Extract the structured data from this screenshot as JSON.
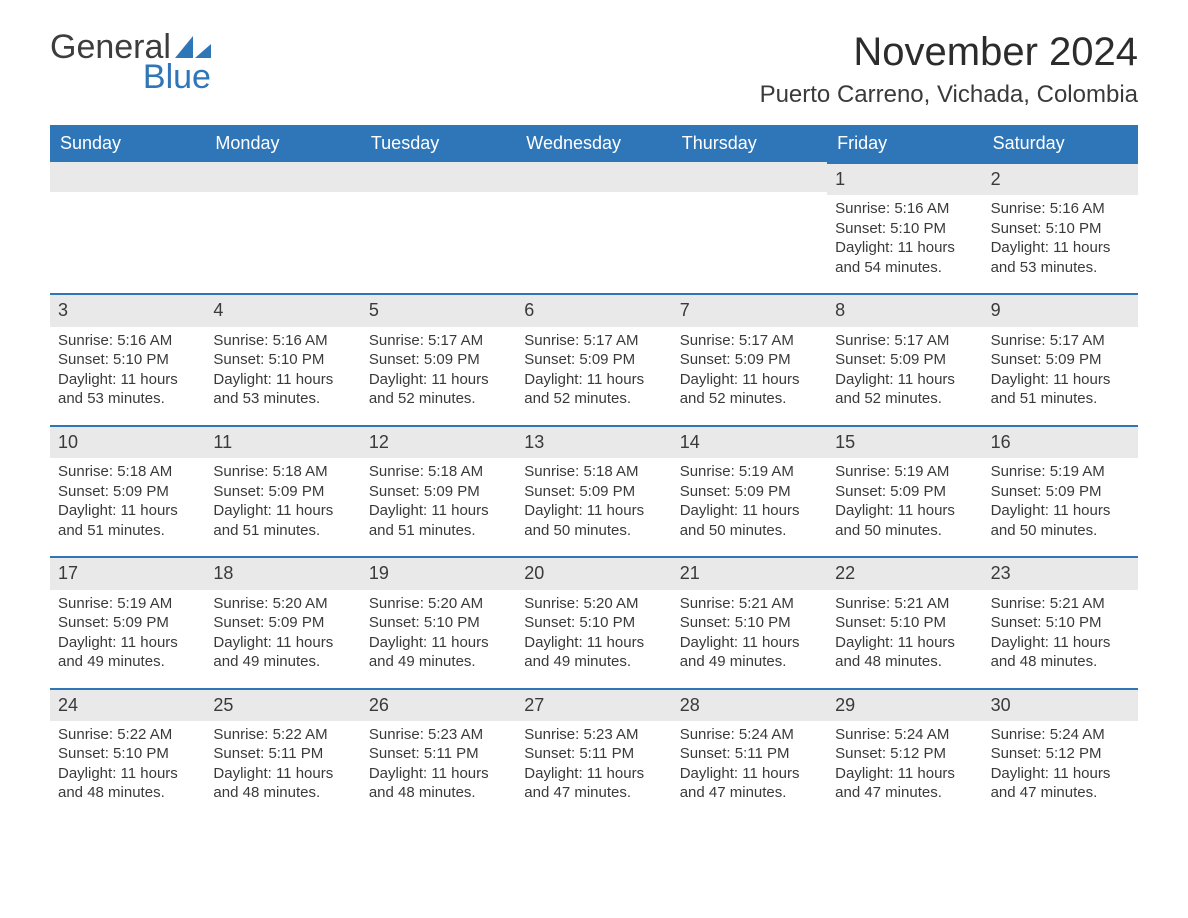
{
  "logo": {
    "text1": "General",
    "text2": "Blue",
    "shape_color": "#2f76b8"
  },
  "title": "November 2024",
  "location": "Puerto Carreno, Vichada, Colombia",
  "theme": {
    "header_bg": "#2f76b8",
    "header_text": "#ffffff",
    "daynum_bg": "#e9e9e9",
    "border_color": "#2f76b8",
    "text_color": "#3a3a3a",
    "background": "#ffffff",
    "title_fontsize": 40,
    "location_fontsize": 24,
    "dow_fontsize": 18,
    "daynum_fontsize": 18,
    "body_fontsize": 15
  },
  "days_of_week": [
    "Sunday",
    "Monday",
    "Tuesday",
    "Wednesday",
    "Thursday",
    "Friday",
    "Saturday"
  ],
  "leading_blanks": 5,
  "labels": {
    "sunrise": "Sunrise: ",
    "sunset": "Sunset: ",
    "daylight": "Daylight: "
  },
  "days": [
    {
      "n": 1,
      "sunrise": "5:16 AM",
      "sunset": "5:10 PM",
      "daylight": "11 hours and 54 minutes."
    },
    {
      "n": 2,
      "sunrise": "5:16 AM",
      "sunset": "5:10 PM",
      "daylight": "11 hours and 53 minutes."
    },
    {
      "n": 3,
      "sunrise": "5:16 AM",
      "sunset": "5:10 PM",
      "daylight": "11 hours and 53 minutes."
    },
    {
      "n": 4,
      "sunrise": "5:16 AM",
      "sunset": "5:10 PM",
      "daylight": "11 hours and 53 minutes."
    },
    {
      "n": 5,
      "sunrise": "5:17 AM",
      "sunset": "5:09 PM",
      "daylight": "11 hours and 52 minutes."
    },
    {
      "n": 6,
      "sunrise": "5:17 AM",
      "sunset": "5:09 PM",
      "daylight": "11 hours and 52 minutes."
    },
    {
      "n": 7,
      "sunrise": "5:17 AM",
      "sunset": "5:09 PM",
      "daylight": "11 hours and 52 minutes."
    },
    {
      "n": 8,
      "sunrise": "5:17 AM",
      "sunset": "5:09 PM",
      "daylight": "11 hours and 52 minutes."
    },
    {
      "n": 9,
      "sunrise": "5:17 AM",
      "sunset": "5:09 PM",
      "daylight": "11 hours and 51 minutes."
    },
    {
      "n": 10,
      "sunrise": "5:18 AM",
      "sunset": "5:09 PM",
      "daylight": "11 hours and 51 minutes."
    },
    {
      "n": 11,
      "sunrise": "5:18 AM",
      "sunset": "5:09 PM",
      "daylight": "11 hours and 51 minutes."
    },
    {
      "n": 12,
      "sunrise": "5:18 AM",
      "sunset": "5:09 PM",
      "daylight": "11 hours and 51 minutes."
    },
    {
      "n": 13,
      "sunrise": "5:18 AM",
      "sunset": "5:09 PM",
      "daylight": "11 hours and 50 minutes."
    },
    {
      "n": 14,
      "sunrise": "5:19 AM",
      "sunset": "5:09 PM",
      "daylight": "11 hours and 50 minutes."
    },
    {
      "n": 15,
      "sunrise": "5:19 AM",
      "sunset": "5:09 PM",
      "daylight": "11 hours and 50 minutes."
    },
    {
      "n": 16,
      "sunrise": "5:19 AM",
      "sunset": "5:09 PM",
      "daylight": "11 hours and 50 minutes."
    },
    {
      "n": 17,
      "sunrise": "5:19 AM",
      "sunset": "5:09 PM",
      "daylight": "11 hours and 49 minutes."
    },
    {
      "n": 18,
      "sunrise": "5:20 AM",
      "sunset": "5:09 PM",
      "daylight": "11 hours and 49 minutes."
    },
    {
      "n": 19,
      "sunrise": "5:20 AM",
      "sunset": "5:10 PM",
      "daylight": "11 hours and 49 minutes."
    },
    {
      "n": 20,
      "sunrise": "5:20 AM",
      "sunset": "5:10 PM",
      "daylight": "11 hours and 49 minutes."
    },
    {
      "n": 21,
      "sunrise": "5:21 AM",
      "sunset": "5:10 PM",
      "daylight": "11 hours and 49 minutes."
    },
    {
      "n": 22,
      "sunrise": "5:21 AM",
      "sunset": "5:10 PM",
      "daylight": "11 hours and 48 minutes."
    },
    {
      "n": 23,
      "sunrise": "5:21 AM",
      "sunset": "5:10 PM",
      "daylight": "11 hours and 48 minutes."
    },
    {
      "n": 24,
      "sunrise": "5:22 AM",
      "sunset": "5:10 PM",
      "daylight": "11 hours and 48 minutes."
    },
    {
      "n": 25,
      "sunrise": "5:22 AM",
      "sunset": "5:11 PM",
      "daylight": "11 hours and 48 minutes."
    },
    {
      "n": 26,
      "sunrise": "5:23 AM",
      "sunset": "5:11 PM",
      "daylight": "11 hours and 48 minutes."
    },
    {
      "n": 27,
      "sunrise": "5:23 AM",
      "sunset": "5:11 PM",
      "daylight": "11 hours and 47 minutes."
    },
    {
      "n": 28,
      "sunrise": "5:24 AM",
      "sunset": "5:11 PM",
      "daylight": "11 hours and 47 minutes."
    },
    {
      "n": 29,
      "sunrise": "5:24 AM",
      "sunset": "5:12 PM",
      "daylight": "11 hours and 47 minutes."
    },
    {
      "n": 30,
      "sunrise": "5:24 AM",
      "sunset": "5:12 PM",
      "daylight": "11 hours and 47 minutes."
    }
  ]
}
